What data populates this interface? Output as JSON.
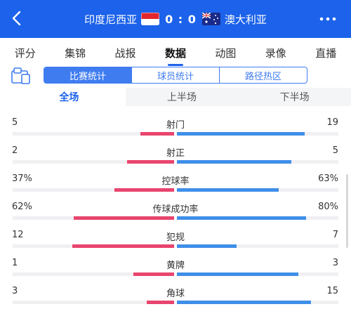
{
  "header": {
    "home_team": "印度尼西亚",
    "away_team": "澳大利亚",
    "home_score": "0",
    "away_score": "0",
    "separator": ":",
    "icons": {
      "back": "back-arrow-icon",
      "more": "more-dots-icon",
      "home_flag": "indonesia-flag-icon",
      "away_flag": "australia-flag-icon"
    }
  },
  "tabs": [
    {
      "label": "评分",
      "active": false
    },
    {
      "label": "集锦",
      "active": false
    },
    {
      "label": "战报",
      "active": false
    },
    {
      "label": "数据",
      "active": true
    },
    {
      "label": "动图",
      "active": false
    },
    {
      "label": "录像",
      "active": false
    },
    {
      "label": "直播",
      "active": false
    }
  ],
  "segments": [
    {
      "label": "比赛统计",
      "active": true
    },
    {
      "label": "球员统计",
      "active": false
    },
    {
      "label": "路径热区",
      "active": false
    }
  ],
  "periods": [
    {
      "label": "全场",
      "active": true
    },
    {
      "label": "上半场",
      "active": false
    },
    {
      "label": "下半场",
      "active": false
    }
  ],
  "colors": {
    "accent": "#1c62ea",
    "home_bar": "#e8456e",
    "away_bar": "#3f8fe8"
  },
  "stats": [
    {
      "name": "射门",
      "home": "5",
      "away": "19",
      "home_share": 0.21,
      "away_share": 0.79
    },
    {
      "name": "射正",
      "home": "2",
      "away": "5",
      "home_share": 0.29,
      "away_share": 0.71
    },
    {
      "name": "控球率",
      "home": "37%",
      "away": "63%",
      "home_share": 0.37,
      "away_share": 0.63
    },
    {
      "name": "传球成功率",
      "home": "62%",
      "away": "80%",
      "home_share": 0.62,
      "away_share": 0.8
    },
    {
      "name": "犯规",
      "home": "12",
      "away": "7",
      "home_share": 0.63,
      "away_share": 0.37
    },
    {
      "name": "黄牌",
      "home": "1",
      "away": "3",
      "home_share": 0.25,
      "away_share": 0.75
    },
    {
      "name": "角球",
      "home": "3",
      "away": "15",
      "home_share": 0.17,
      "away_share": 0.83
    }
  ]
}
